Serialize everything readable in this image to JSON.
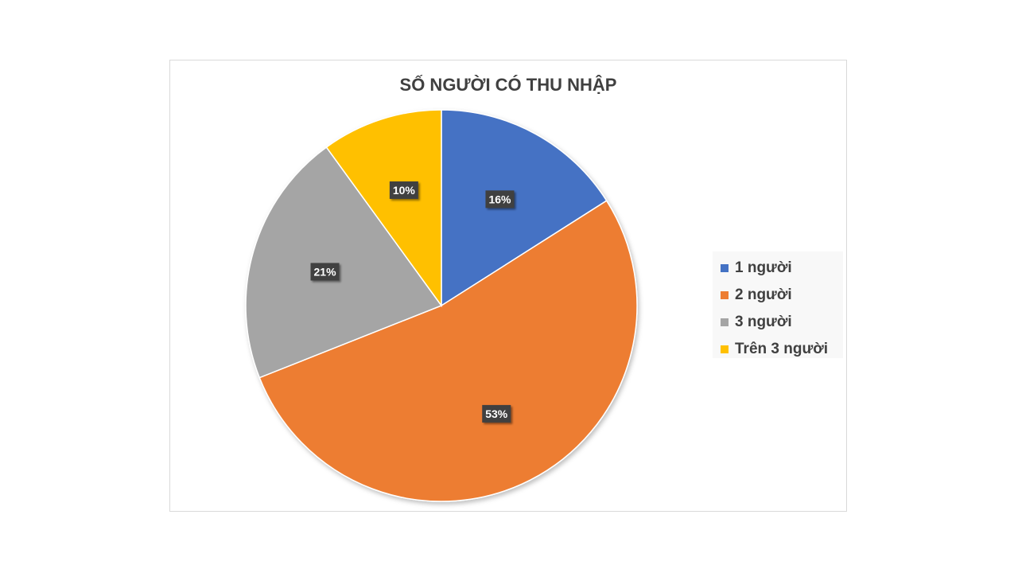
{
  "chart_data": {
    "type": "pie",
    "title": "SỐ NGƯỜI CÓ THU NHẬP",
    "categories": [
      "1 người",
      "2 người",
      "3 người",
      "Trên 3 người"
    ],
    "values": [
      16,
      53,
      21,
      10
    ],
    "data_labels": [
      "16%",
      "53%",
      "21%",
      "10%"
    ],
    "colors": [
      "#4472c4",
      "#ed7d31",
      "#a5a5a5",
      "#ffc000"
    ],
    "legend_position": "right",
    "start_angle": "top",
    "direction": "clockwise"
  }
}
